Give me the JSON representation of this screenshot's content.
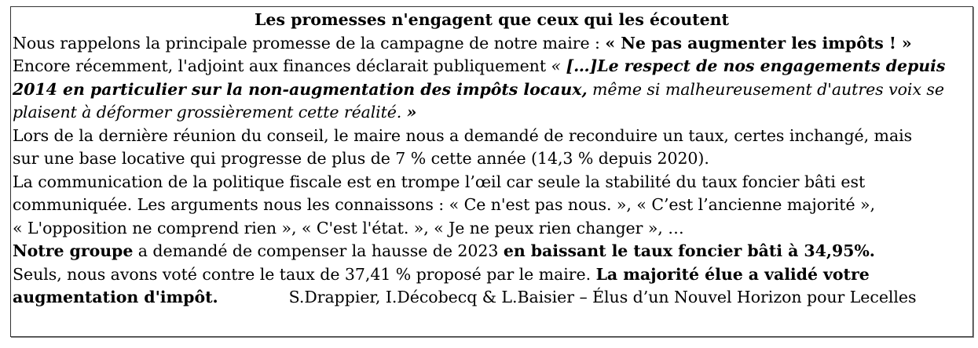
{
  "title": "Les promesses n'engagent que ceux qui les écoutent",
  "lines": [
    [
      {
        "t": "Nous rappelons la principale promesse de la campagne de notre maire : ",
        "s": ""
      },
      {
        "t": "« Ne pas augmenter les impôts ! »",
        "s": "b"
      }
    ],
    [
      {
        "t": "Encore récemment, l'adjoint aux finances déclarait publiquement ",
        "s": ""
      },
      {
        "t": "« ",
        "s": "i"
      },
      {
        "t": "[…]Le respect de nos engagements depuis",
        "s": "bi"
      }
    ],
    [
      {
        "t": "2014 en particulier sur la non-augmentation des impôts locaux,",
        "s": "bi"
      },
      {
        "t": " même si malheureusement d'autres voix se",
        "s": "i"
      }
    ],
    [
      {
        "t": "plaisent à déformer grossièrement cette réalité. ",
        "s": "i"
      },
      {
        "t": "»",
        "s": "bi"
      }
    ],
    [
      {
        "t": "Lors de la dernière réunion du conseil, le maire nous a demandé de reconduire un taux, certes inchangé, mais",
        "s": ""
      }
    ],
    [
      {
        "t": "sur une base locative qui progresse de plus de 7 % cette année (14,3 % depuis 2020).",
        "s": ""
      }
    ],
    [
      {
        "t": "La communication de la politique fiscale est en trompe l’œil car seule la stabilité du taux foncier bâti est",
        "s": ""
      }
    ],
    [
      {
        "t": "communiquée. Les arguments nous les connaissons : « Ce n'est pas nous. », « C’est l’ancienne majorité »,",
        "s": ""
      }
    ],
    [
      {
        "t": "« L'opposition ne comprend rien », « C'est l'état. », « Je ne peux rien changer », …",
        "s": ""
      }
    ],
    [
      {
        "t": "Notre groupe",
        "s": "b"
      },
      {
        "t": " a demandé de compenser la hausse de 2023 ",
        "s": ""
      },
      {
        "t": "en baissant le taux foncier bâti à 34,95%.",
        "s": "b"
      }
    ],
    [
      {
        "t": "Seuls, nous avons voté contre le taux de 37,41 % proposé par le maire. ",
        "s": ""
      },
      {
        "t": "La majorité élue a validé votre",
        "s": "b"
      }
    ]
  ],
  "last_line": "augmentation d'impôt.",
  "signature": "S.Drappier, I.Décobecq & L.Baisier – Élus d’un Nouvel Horizon pour Lecelles"
}
